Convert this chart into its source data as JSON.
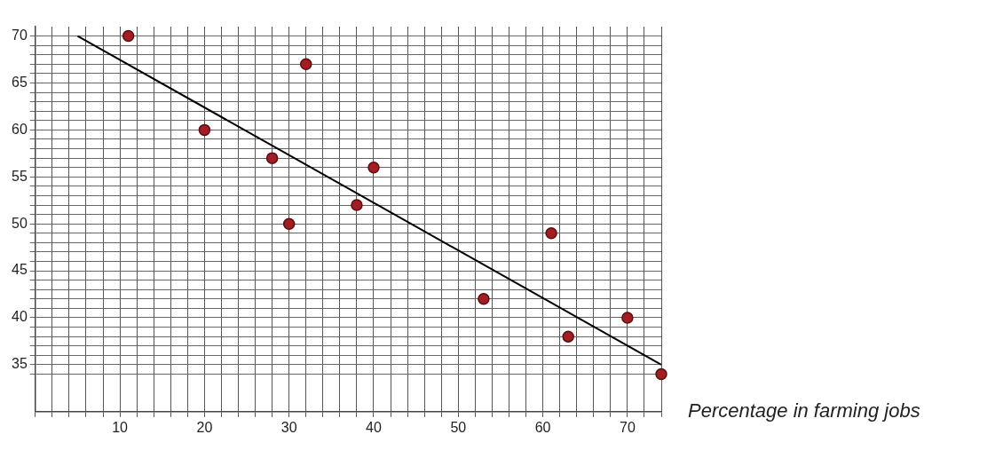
{
  "chart_data": {
    "type": "scatter",
    "xlabel": "Percentage in farming jobs",
    "grid": true,
    "legend": false,
    "marker": "circle",
    "xlim": [
      0,
      74
    ],
    "ylim": [
      30,
      71
    ],
    "xticks": [
      {
        "value": 0,
        "label": null
      },
      {
        "value": 2,
        "label": null
      },
      {
        "value": 4,
        "label": null
      },
      {
        "value": 6,
        "label": null
      },
      {
        "value": 8,
        "label": null
      },
      10,
      {
        "value": 12,
        "label": null
      },
      {
        "value": 14,
        "label": null
      },
      {
        "value": 16,
        "label": null
      },
      {
        "value": 18,
        "label": null
      },
      20,
      {
        "value": 22,
        "label": null
      },
      {
        "value": 24,
        "label": null
      },
      {
        "value": 26,
        "label": null
      },
      {
        "value": 28,
        "label": null
      },
      30,
      {
        "value": 32,
        "label": null
      },
      {
        "value": 34,
        "label": null
      },
      {
        "value": 36,
        "label": null
      },
      {
        "value": 38,
        "label": null
      },
      40,
      {
        "value": 42,
        "label": null
      },
      {
        "value": 44,
        "label": null
      },
      {
        "value": 46,
        "label": null
      },
      {
        "value": 48,
        "label": null
      },
      50,
      {
        "value": 52,
        "label": null
      },
      {
        "value": 54,
        "label": null
      },
      {
        "value": 56,
        "label": null
      },
      {
        "value": 58,
        "label": null
      },
      60,
      {
        "value": 62,
        "label": null
      },
      {
        "value": 64,
        "label": null
      },
      {
        "value": 66,
        "label": null
      },
      {
        "value": 68,
        "label": null
      },
      70,
      {
        "value": 72,
        "label": null
      },
      {
        "value": 74,
        "label": null
      }
    ],
    "yticks": [
      {
        "value": 34,
        "label": null
      },
      35,
      {
        "value": 36,
        "label": null
      },
      {
        "value": 37,
        "label": null
      },
      {
        "value": 38,
        "label": null
      },
      {
        "value": 39,
        "label": null
      },
      40,
      {
        "value": 41,
        "label": null
      },
      {
        "value": 42,
        "label": null
      },
      {
        "value": 43,
        "label": null
      },
      {
        "value": 44,
        "label": null
      },
      45,
      {
        "value": 46,
        "label": null
      },
      {
        "value": 47,
        "label": null
      },
      {
        "value": 48,
        "label": null
      },
      {
        "value": 49,
        "label": null
      },
      50,
      {
        "value": 51,
        "label": null
      },
      {
        "value": 52,
        "label": null
      },
      {
        "value": 53,
        "label": null
      },
      {
        "value": 54,
        "label": null
      },
      55,
      {
        "value": 56,
        "label": null
      },
      {
        "value": 57,
        "label": null
      },
      {
        "value": 58,
        "label": null
      },
      {
        "value": 59,
        "label": null
      },
      60,
      {
        "value": 61,
        "label": null
      },
      {
        "value": 62,
        "label": null
      },
      {
        "value": 63,
        "label": null
      },
      {
        "value": 64,
        "label": null
      },
      65,
      {
        "value": 66,
        "label": null
      },
      {
        "value": 67,
        "label": null
      },
      {
        "value": 68,
        "label": null
      },
      {
        "value": 69,
        "label": null
      },
      70
    ],
    "series": [
      {
        "type": "scatter",
        "color": "#a31e22",
        "x": [
          11,
          20,
          28,
          30,
          32,
          38,
          40,
          53,
          61,
          63,
          70,
          74
        ],
        "values": [
          70,
          60,
          57,
          50,
          67,
          52,
          56,
          42,
          49,
          38,
          40,
          34
        ]
      },
      {
        "type": "line",
        "color": "#000000",
        "marker": "none",
        "x": [
          5,
          74
        ],
        "values": [
          70,
          35
        ]
      }
    ]
  }
}
